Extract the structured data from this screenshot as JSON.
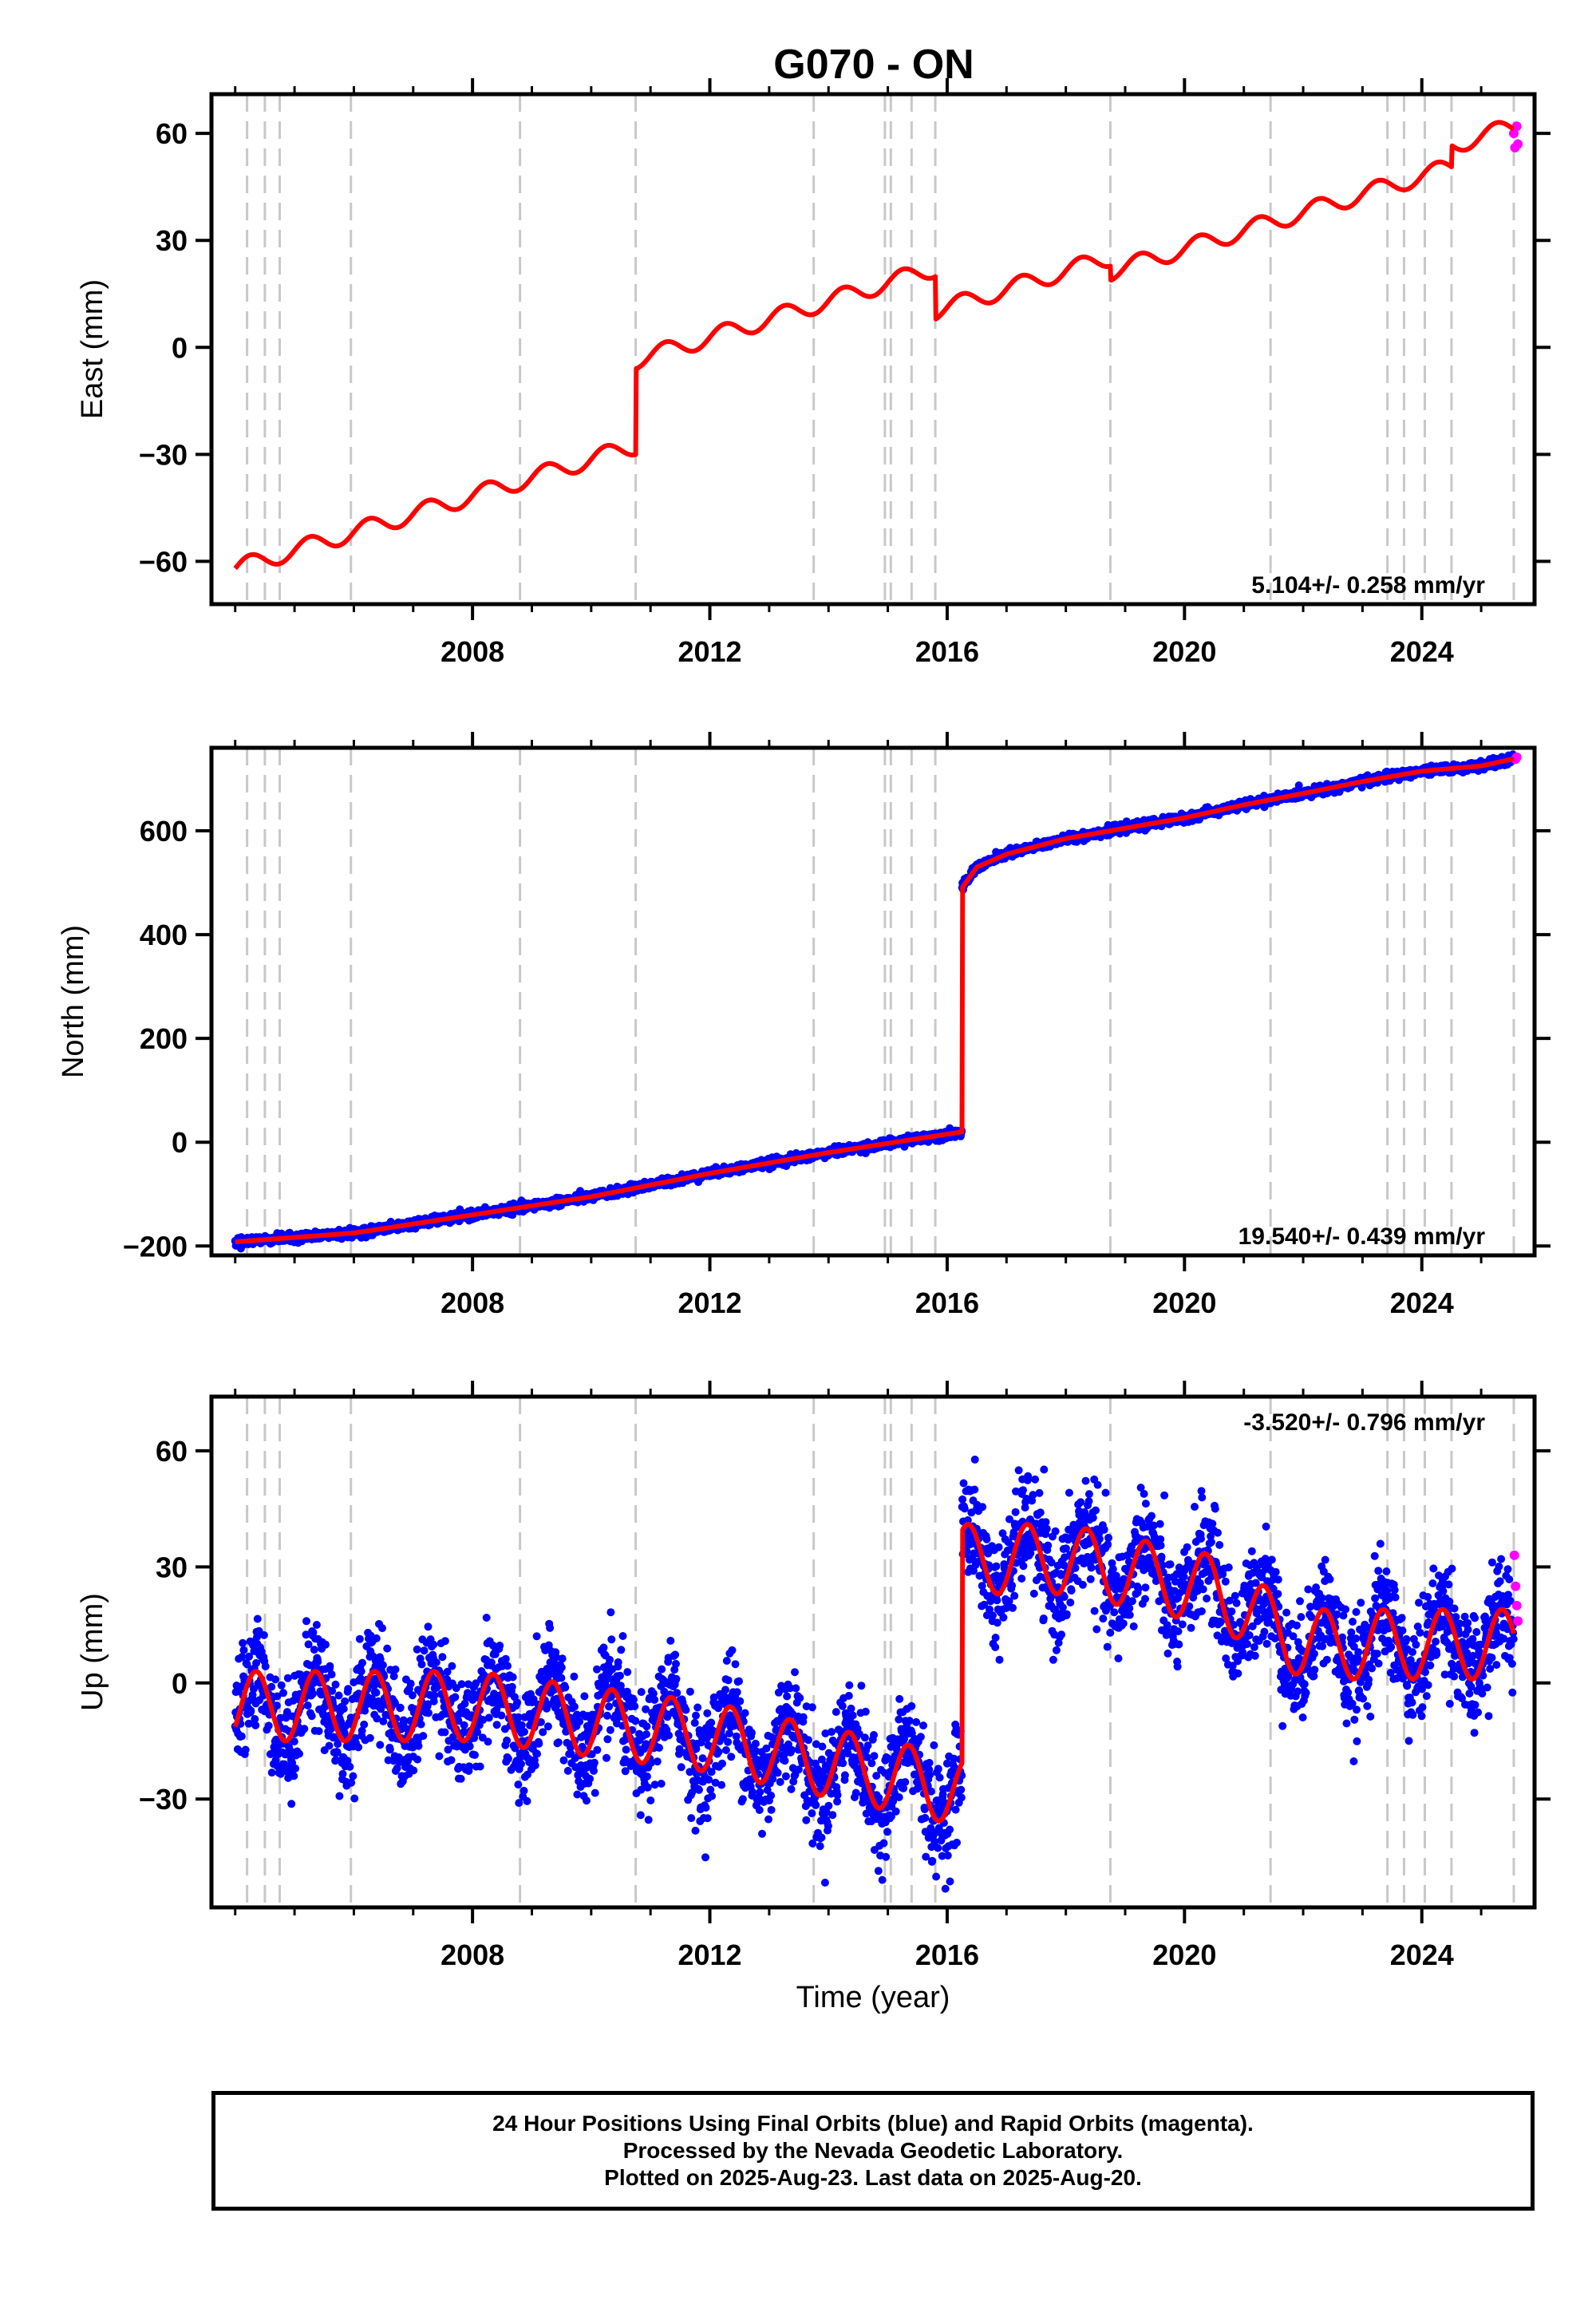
{
  "title": "G070 - ON",
  "footer": {
    "line1": "24 Hour Positions Using Final Orbits (blue) and Rapid Orbits (magenta).",
    "line2": "Processed by the Nevada Geodetic Laboratory.",
    "line3": "Plotted on 2025-Aug-23. Last data on 2025-Aug-20."
  },
  "colors": {
    "final_orbits": "#0000ff",
    "rapid_orbits": "#ff00ff",
    "model": "#ff0000",
    "event_lines": "#c8c8c8",
    "axes": "#000000"
  },
  "chart_data": [
    {
      "type": "scatter",
      "component": "east",
      "ylabel": "East (mm)",
      "xlabel": "",
      "xlim": [
        2003.6,
        2025.9
      ],
      "ylim": [
        -72,
        71
      ],
      "yticks": [
        -60,
        -30,
        0,
        30,
        60
      ],
      "xticks": [
        2008,
        2012,
        2016,
        2020,
        2024
      ],
      "rate_label": "5.104+/- 0.258 mm/yr",
      "rate_position": "bottom-right",
      "grid": false,
      "event_lines": [
        2004.2,
        2004.5,
        2004.75,
        2005.95,
        2008.8,
        2010.75,
        2013.75,
        2014.95,
        2015.05,
        2015.4,
        2015.8,
        2018.75,
        2021.45,
        2023.42,
        2023.7,
        2024.05,
        2024.5,
        2025.55
      ],
      "model": {
        "t0": 2004.0,
        "trend_start": -62,
        "rate": 5.104,
        "offsets": [
          {
            "year": 2010.75,
            "value": 24
          },
          {
            "year": 2015.8,
            "value": -12
          },
          {
            "year": 2018.75,
            "value": -4
          },
          {
            "year": 2024.5,
            "value": 6
          }
        ],
        "seasonal_amplitude": 2.5,
        "noise": 1.8
      },
      "rapid_points": [
        [
          2025.55,
          60
        ],
        [
          2025.57,
          56
        ],
        [
          2025.6,
          62
        ],
        [
          2025.62,
          57
        ]
      ]
    },
    {
      "type": "scatter",
      "component": "north",
      "ylabel": "North (mm)",
      "xlabel": "",
      "xlim": [
        2003.6,
        2025.9
      ],
      "ylim": [
        -218,
        760
      ],
      "yticks": [
        -200,
        0,
        200,
        400,
        600
      ],
      "xticks": [
        2008,
        2012,
        2016,
        2020,
        2024
      ],
      "rate_label": "19.540+/- 0.439 mm/yr",
      "rate_position": "bottom-right",
      "grid": false,
      "event_lines": [
        2004.2,
        2004.5,
        2004.75,
        2005.95,
        2008.8,
        2010.75,
        2013.75,
        2014.95,
        2015.05,
        2015.4,
        2015.8,
        2018.75,
        2021.45,
        2023.42,
        2023.7,
        2024.05,
        2024.5,
        2025.55
      ],
      "segments": [
        {
          "x": [
            2004.0,
            2006,
            2008,
            2010,
            2012,
            2014,
            2016.25
          ],
          "y": [
            -192,
            -175,
            -140,
            -105,
            -60,
            -20,
            20
          ]
        },
        {
          "x": [
            2016.25,
            2016.5,
            2017,
            2018,
            2019,
            2020,
            2021,
            2022,
            2023,
            2024,
            2025,
            2025.6
          ],
          "y": [
            490,
            530,
            555,
            585,
            605,
            625,
            650,
            672,
            695,
            715,
            725,
            740
          ]
        }
      ],
      "noise": 4,
      "rapid_points": [
        [
          2025.58,
          738
        ],
        [
          2025.6,
          742
        ]
      ]
    },
    {
      "type": "scatter",
      "component": "up",
      "ylabel": "Up (mm)",
      "xlabel": "Time (year)",
      "xlim": [
        2003.6,
        2025.9
      ],
      "ylim": [
        -58,
        74
      ],
      "yticks": [
        -30,
        0,
        30,
        60
      ],
      "xticks": [
        2008,
        2012,
        2016,
        2020,
        2024
      ],
      "rate_label": "-3.520+/- 0.796 mm/yr",
      "rate_position": "top-right",
      "grid": false,
      "event_lines": [
        2004.2,
        2004.5,
        2004.75,
        2005.95,
        2008.8,
        2010.75,
        2013.75,
        2014.95,
        2015.05,
        2015.4,
        2015.8,
        2018.75,
        2021.45,
        2023.42,
        2023.7,
        2024.05,
        2024.5,
        2025.55
      ],
      "segments": [
        {
          "x": [
            2004.0,
            2008,
            2012,
            2016.25
          ],
          "y": [
            -6,
            -6,
            -14,
            -28
          ],
          "amplitude": 9
        },
        {
          "x": [
            2016.25,
            2018,
            2020.5,
            2022,
            2025.6
          ],
          "y": [
            32,
            32,
            24,
            10,
            10
          ],
          "amplitude": 9
        }
      ],
      "noise": 7,
      "rapid_points": [
        [
          2025.56,
          33
        ],
        [
          2025.58,
          25
        ],
        [
          2025.6,
          20
        ],
        [
          2025.62,
          16
        ]
      ]
    }
  ]
}
